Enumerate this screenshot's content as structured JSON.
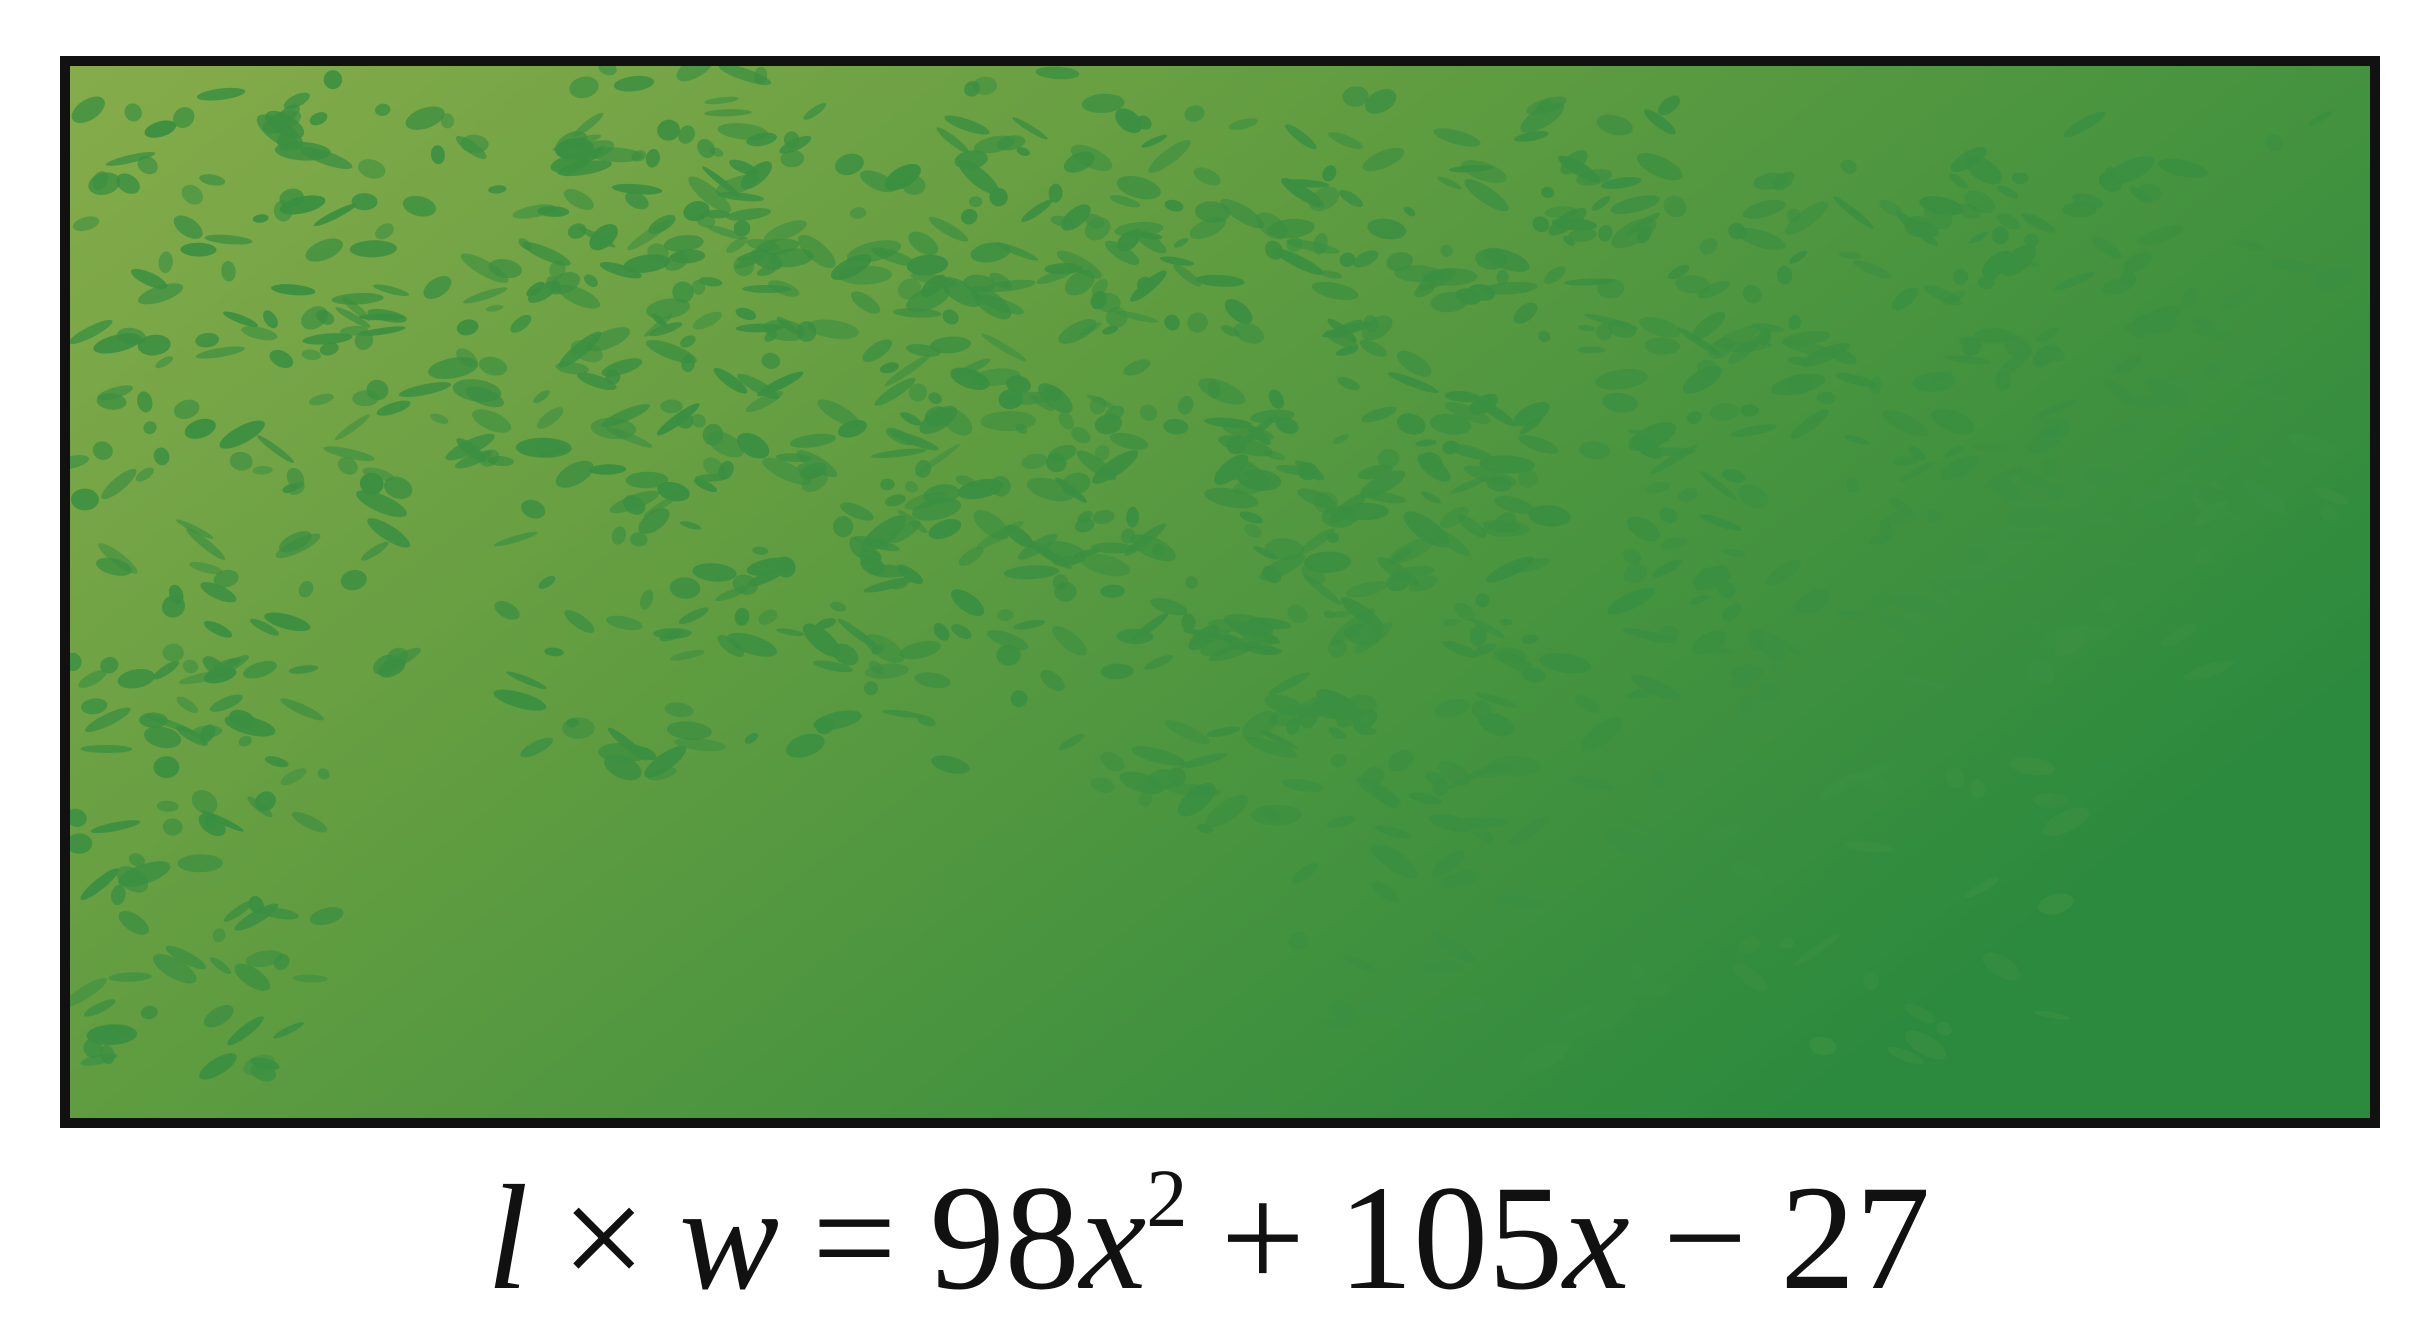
{
  "diagram": {
    "field_colors": {
      "light": "#86ac4a",
      "mid": "#5f9c40",
      "dark": "#2b8a3e",
      "speckle": "#3a8f41",
      "border": "#111111"
    },
    "equation": {
      "length_var": "l",
      "times": "×",
      "width_var": "w",
      "equals": "=",
      "coef_a": "98",
      "var_x1": "x",
      "exponent": "2",
      "plus": "+",
      "coef_b": "105",
      "var_x2": "x",
      "minus": "−",
      "constant": "27"
    }
  }
}
